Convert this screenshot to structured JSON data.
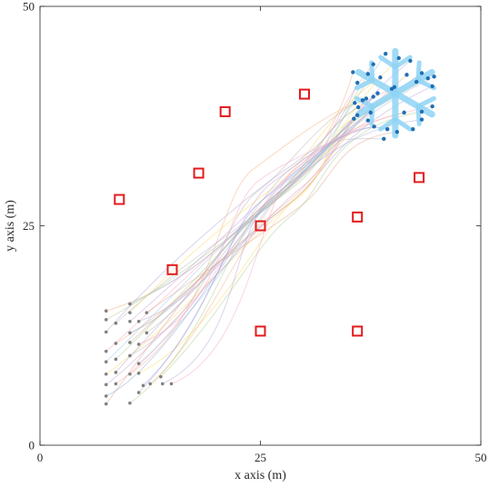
{
  "chart_data": {
    "type": "line",
    "xlabel": "x axis (m)",
    "ylabel": "y axis (m)",
    "xlim": [
      0,
      50
    ],
    "ylim": [
      0,
      50
    ],
    "xticks": [
      0,
      25,
      50
    ],
    "yticks": [
      0,
      25,
      50
    ],
    "grid": false,
    "colors": {
      "obstacle": "#e31a1c",
      "start": "#808080",
      "goal": "#1f6fb4",
      "snowflake": "#8fd3f5",
      "trajectories": [
        "#f4b183",
        "#a9d18e",
        "#b4a7d6",
        "#f4a6c8",
        "#9dc3e6",
        "#ffd966",
        "#c9a0dc",
        "#8faadc",
        "#e2a28f",
        "#b7b7b7"
      ]
    },
    "obstacles": [
      {
        "x": 9,
        "y": 28
      },
      {
        "x": 21,
        "y": 38
      },
      {
        "x": 30,
        "y": 40
      },
      {
        "x": 18,
        "y": 31
      },
      {
        "x": 43,
        "y": 30.5
      },
      {
        "x": 25,
        "y": 25
      },
      {
        "x": 36,
        "y": 26
      },
      {
        "x": 15,
        "y": 20
      },
      {
        "x": 25,
        "y": 13
      },
      {
        "x": 36,
        "y": 13
      }
    ],
    "starts": [
      {
        "x": 7.5,
        "y": 15.3
      },
      {
        "x": 7.5,
        "y": 14.3
      },
      {
        "x": 7.5,
        "y": 12.9
      },
      {
        "x": 7.5,
        "y": 10.7
      },
      {
        "x": 7.5,
        "y": 9.5
      },
      {
        "x": 7.5,
        "y": 8.1
      },
      {
        "x": 7.5,
        "y": 6.9
      },
      {
        "x": 7.5,
        "y": 5.6
      },
      {
        "x": 7.5,
        "y": 4.7
      },
      {
        "x": 8.6,
        "y": 13.9
      },
      {
        "x": 8.6,
        "y": 11.6
      },
      {
        "x": 8.6,
        "y": 9.8
      },
      {
        "x": 8.6,
        "y": 8.3
      },
      {
        "x": 8.6,
        "y": 7.0
      },
      {
        "x": 10.2,
        "y": 16.1
      },
      {
        "x": 10.2,
        "y": 15.1
      },
      {
        "x": 10.2,
        "y": 14.1
      },
      {
        "x": 10.2,
        "y": 12.8
      },
      {
        "x": 10.2,
        "y": 11.7
      },
      {
        "x": 10.2,
        "y": 10.2
      },
      {
        "x": 10.2,
        "y": 8.1
      },
      {
        "x": 10.2,
        "y": 4.8
      },
      {
        "x": 11.2,
        "y": 14.1
      },
      {
        "x": 11.2,
        "y": 11.5
      },
      {
        "x": 11.2,
        "y": 9.3
      },
      {
        "x": 11.2,
        "y": 8.2
      },
      {
        "x": 11.2,
        "y": 6.0
      },
      {
        "x": 11.7,
        "y": 6.8
      },
      {
        "x": 12.1,
        "y": 15.1
      },
      {
        "x": 12.1,
        "y": 12.8
      },
      {
        "x": 12.5,
        "y": 7.0
      },
      {
        "x": 13.7,
        "y": 7.8
      },
      {
        "x": 13.9,
        "y": 7.0
      },
      {
        "x": 14.9,
        "y": 7.0
      }
    ],
    "goals": [
      {
        "x": 35.5,
        "y": 42.5
      },
      {
        "x": 37.2,
        "y": 42.3
      },
      {
        "x": 36.0,
        "y": 41.3
      },
      {
        "x": 37.8,
        "y": 43.4
      },
      {
        "x": 39.2,
        "y": 44.6
      },
      {
        "x": 40.7,
        "y": 44.1
      },
      {
        "x": 42.0,
        "y": 43.8
      },
      {
        "x": 43.3,
        "y": 42.4
      },
      {
        "x": 44.0,
        "y": 41.8
      },
      {
        "x": 44.7,
        "y": 42.0
      },
      {
        "x": 41.6,
        "y": 42.2
      },
      {
        "x": 42.7,
        "y": 41.4
      },
      {
        "x": 44.5,
        "y": 40.9
      },
      {
        "x": 39.9,
        "y": 40.6
      },
      {
        "x": 40.2,
        "y": 40.8
      },
      {
        "x": 38.6,
        "y": 41.9
      },
      {
        "x": 38.3,
        "y": 40.1
      },
      {
        "x": 37.8,
        "y": 39.7
      },
      {
        "x": 37.0,
        "y": 39.5
      },
      {
        "x": 36.6,
        "y": 39.3
      },
      {
        "x": 35.7,
        "y": 39.0
      },
      {
        "x": 36.1,
        "y": 38.5
      },
      {
        "x": 37.5,
        "y": 37.9
      },
      {
        "x": 37.2,
        "y": 37.0
      },
      {
        "x": 36.0,
        "y": 37.6
      },
      {
        "x": 35.6,
        "y": 37.2
      },
      {
        "x": 37.9,
        "y": 36.3
      },
      {
        "x": 39.4,
        "y": 36.0
      },
      {
        "x": 40.5,
        "y": 35.7
      },
      {
        "x": 39.0,
        "y": 34.9
      },
      {
        "x": 41.3,
        "y": 37.9
      },
      {
        "x": 43.3,
        "y": 38.0
      },
      {
        "x": 43.3,
        "y": 37.1
      },
      {
        "x": 44.5,
        "y": 38.6
      },
      {
        "x": 42.3,
        "y": 36.0
      }
    ],
    "snowflake": {
      "center": [
        40.3,
        40.1
      ],
      "arm_length": 4.8
    }
  }
}
